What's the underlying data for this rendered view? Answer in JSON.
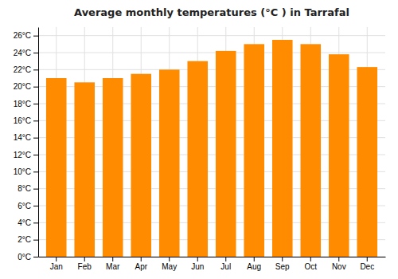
{
  "chart_data": {
    "type": "bar",
    "title": "Average monthly temperatures (°C ) in Tarrafal",
    "categories": [
      "Jan",
      "Feb",
      "Mar",
      "Apr",
      "May",
      "Jun",
      "Jul",
      "Aug",
      "Sep",
      "Oct",
      "Nov",
      "Dec"
    ],
    "values": [
      21.0,
      20.5,
      21.0,
      21.5,
      22.0,
      23.0,
      24.2,
      25.0,
      25.5,
      25.0,
      23.8,
      22.3
    ],
    "color": "#FF8C00",
    "ylim": [
      0,
      27
    ],
    "yticks": [
      {
        "value": 0,
        "label": "0°C"
      },
      {
        "value": 2,
        "label": "2°C"
      },
      {
        "value": 4,
        "label": "4°C"
      },
      {
        "value": 6,
        "label": "6°C"
      },
      {
        "value": 8,
        "label": "8°C"
      },
      {
        "value": 10,
        "label": "10°C"
      },
      {
        "value": 12,
        "label": "12°C"
      },
      {
        "value": 14,
        "label": "14°C"
      },
      {
        "value": 16,
        "label": "16°C"
      },
      {
        "value": 18,
        "label": "18°C"
      },
      {
        "value": 20,
        "label": "20°C"
      },
      {
        "value": 22,
        "label": "22°C"
      },
      {
        "value": 24,
        "label": "24°C"
      },
      {
        "value": 26,
        "label": "26°C"
      }
    ],
    "grid": true
  }
}
